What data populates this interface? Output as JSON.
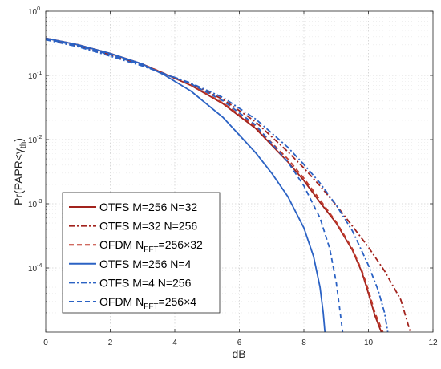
{
  "chart_data": {
    "type": "line",
    "title": "",
    "xlabel": "dB",
    "ylabel": "Pr(PAPR<γ_th)",
    "ylabel_parts": {
      "main": "Pr(PAPR<γ",
      "sub": "th",
      "close": ")"
    },
    "xlim": [
      0,
      12
    ],
    "ylim": [
      1e-05,
      1
    ],
    "yscale": "log",
    "grid": "dotted",
    "legend_position": "lower-left",
    "xticks": [
      0,
      2,
      4,
      6,
      8,
      10,
      12
    ],
    "xtick_labels": [
      "0",
      "2",
      "4",
      "6",
      "8",
      "10",
      "12"
    ],
    "yticks": [
      1,
      0.1,
      0.01,
      0.001,
      0.0001
    ],
    "ytick_labels": [
      {
        "base": "10",
        "exp": "0"
      },
      {
        "base": "10",
        "exp": "-1"
      },
      {
        "base": "10",
        "exp": "-2"
      },
      {
        "base": "10",
        "exp": "-3"
      },
      {
        "base": "10",
        "exp": "-4"
      }
    ],
    "series": [
      {
        "name": "OTFS M=256 N=32",
        "legend": {
          "main": "OTFS M=256 N=32",
          "sub": "",
          "tail": ""
        },
        "color": "#a2231d",
        "dash": "solid",
        "x": [
          0,
          1,
          2,
          3,
          3.7,
          4.5,
          5.5,
          6.5,
          7.5,
          8.0,
          8.5,
          9.0,
          9.5,
          9.8,
          10.0,
          10.2,
          10.4
        ],
        "y": [
          0.38,
          0.3,
          0.22,
          0.15,
          0.105,
          0.07,
          0.036,
          0.015,
          0.0045,
          0.0023,
          0.00105,
          0.0005,
          0.00019,
          8.5e-05,
          4e-05,
          1.8e-05,
          1e-05
        ]
      },
      {
        "name": "OTFS M=32 N=256",
        "legend": {
          "main": "OTFS M=32 N=256",
          "sub": "",
          "tail": ""
        },
        "color": "#a2231d",
        "dash": "dashdot",
        "x": [
          0,
          1,
          2,
          3,
          3.7,
          4.5,
          5.5,
          6.5,
          7.5,
          8.0,
          8.5,
          9.0,
          9.5,
          10.0,
          10.5,
          11.0,
          11.3
        ],
        "y": [
          0.37,
          0.29,
          0.21,
          0.145,
          0.105,
          0.074,
          0.042,
          0.019,
          0.0065,
          0.0036,
          0.0019,
          0.00095,
          0.00045,
          0.00021,
          9e-05,
          3.2e-05,
          1e-05
        ]
      },
      {
        "name": "OFDM N_FFT=256×32",
        "legend": {
          "main": "OFDM N",
          "sub": "FFT",
          "tail": "=256×32"
        },
        "color": "#c0392b",
        "dash": "dash",
        "x": [
          0,
          1,
          2,
          3,
          3.7,
          4.5,
          5.5,
          6.5,
          7.5,
          8.0,
          8.5,
          9.0,
          9.5,
          9.8,
          10.0,
          10.2,
          10.45
        ],
        "y": [
          0.38,
          0.3,
          0.22,
          0.15,
          0.106,
          0.071,
          0.037,
          0.016,
          0.005,
          0.0025,
          0.00115,
          0.00052,
          0.0002,
          9e-05,
          4.5e-05,
          2e-05,
          1e-05
        ]
      },
      {
        "name": "OTFS M=256 N=4",
        "legend": {
          "main": "OTFS M=256 N=4",
          "sub": "",
          "tail": ""
        },
        "color": "#2b62c4",
        "dash": "solid",
        "x": [
          0,
          1,
          2,
          3,
          3.7,
          4.5,
          5.5,
          6.5,
          7.0,
          7.5,
          8.0,
          8.3,
          8.5,
          8.6,
          8.65
        ],
        "y": [
          0.38,
          0.3,
          0.22,
          0.15,
          0.1,
          0.057,
          0.022,
          0.0063,
          0.003,
          0.0013,
          0.00042,
          0.00015,
          5e-05,
          2e-05,
          1e-05
        ]
      },
      {
        "name": "OTFS M=4 N=256",
        "legend": {
          "main": "OTFS M=4 N=256",
          "sub": "",
          "tail": ""
        },
        "color": "#2b62c4",
        "dash": "dashdot",
        "x": [
          0,
          1,
          2,
          3,
          3.7,
          4.5,
          5.5,
          6.5,
          7.5,
          8.0,
          8.5,
          9.0,
          9.5,
          10.0,
          10.3,
          10.5,
          10.6
        ],
        "y": [
          0.36,
          0.28,
          0.2,
          0.14,
          0.105,
          0.076,
          0.045,
          0.021,
          0.0076,
          0.0041,
          0.0021,
          0.00095,
          0.00038,
          0.00011,
          4.5e-05,
          2e-05,
          1e-05
        ]
      },
      {
        "name": "OFDM N_FFT=256×4",
        "legend": {
          "main": "OFDM N",
          "sub": "FFT",
          "tail": "=256×4"
        },
        "color": "#2b62c4",
        "dash": "dash",
        "x": [
          0,
          1,
          2,
          3,
          3.7,
          4.5,
          5.5,
          6.5,
          7.5,
          8.0,
          8.5,
          8.8,
          9.0,
          9.1,
          9.2
        ],
        "y": [
          0.37,
          0.29,
          0.21,
          0.145,
          0.104,
          0.074,
          0.04,
          0.017,
          0.0045,
          0.0019,
          0.0006,
          0.0002,
          6e-05,
          2.5e-05,
          1e-05
        ]
      }
    ]
  }
}
